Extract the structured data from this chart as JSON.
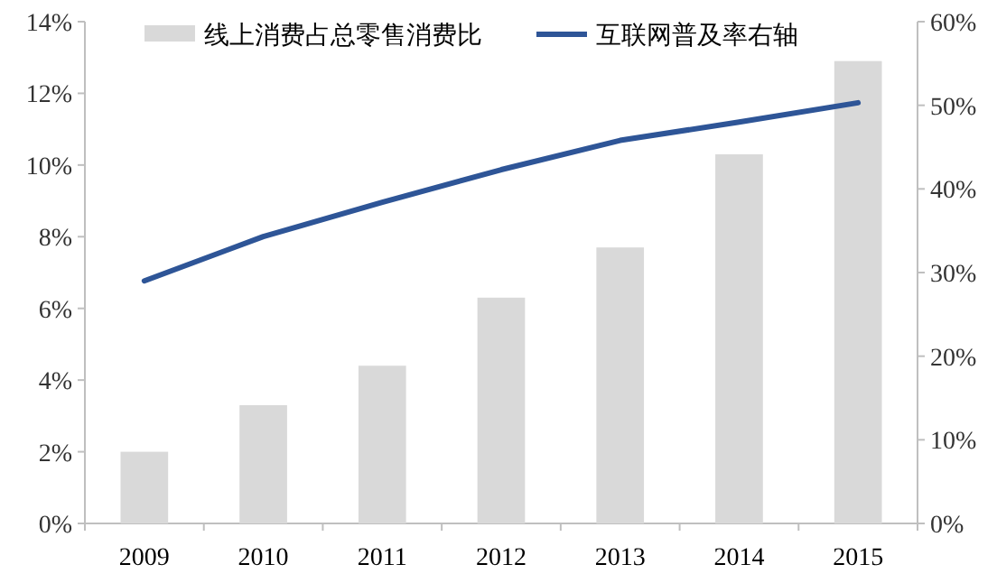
{
  "chart_data": {
    "type": "bar",
    "categories": [
      "2009",
      "2010",
      "2011",
      "2012",
      "2013",
      "2014",
      "2015"
    ],
    "series": [
      {
        "name": "线上消费占总零售消费比",
        "color": "#d9d9d9",
        "values": [
          2.0,
          3.3,
          4.4,
          6.3,
          7.7,
          10.3,
          12.9
        ]
      },
      {
        "name": "互联网普及率右轴",
        "type": "line",
        "axis": "y2",
        "color": "#2e5597",
        "values": [
          29.0,
          34.3,
          38.4,
          42.3,
          45.8,
          48.0,
          50.3
        ]
      }
    ],
    "ylim": [
      0,
      14
    ],
    "yticks": [
      {
        "value": 0,
        "label": "0%"
      },
      {
        "value": 2,
        "label": "2%"
      },
      {
        "value": 4,
        "label": "4%"
      },
      {
        "value": 6,
        "label": "6%"
      },
      {
        "value": 8,
        "label": "8%"
      },
      {
        "value": 10,
        "label": "10%"
      },
      {
        "value": 12,
        "label": "12%"
      },
      {
        "value": 14,
        "label": "14%"
      }
    ],
    "y2lim": [
      0,
      60
    ],
    "y2ticks": [
      {
        "value": 0,
        "label": "0%"
      },
      {
        "value": 10,
        "label": "10%"
      },
      {
        "value": 20,
        "label": "20%"
      },
      {
        "value": 30,
        "label": "30%"
      },
      {
        "value": 40,
        "label": "40%"
      },
      {
        "value": 50,
        "label": "50%"
      },
      {
        "value": 60,
        "label": "60%"
      }
    ],
    "legend": "top",
    "grid": false,
    "marker": "none"
  }
}
